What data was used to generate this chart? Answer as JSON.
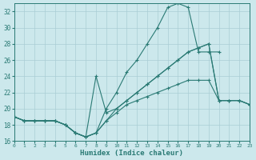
{
  "xlabel": "Humidex (Indice chaleur)",
  "bg_color": "#cce8ec",
  "grid_color": "#aacdd4",
  "line_color": "#2a7a74",
  "xlim": [
    0,
    23
  ],
  "ylim": [
    16,
    33
  ],
  "xticks": [
    0,
    1,
    2,
    3,
    4,
    5,
    6,
    7,
    8,
    9,
    10,
    11,
    12,
    13,
    14,
    15,
    16,
    17,
    18,
    19,
    20,
    21,
    22,
    23
  ],
  "yticks": [
    16,
    18,
    20,
    22,
    24,
    26,
    28,
    30,
    32
  ],
  "lines": [
    {
      "x": [
        0,
        1,
        2,
        3,
        4,
        5,
        6,
        7,
        8,
        9,
        10,
        11,
        12,
        13,
        14,
        15,
        16,
        17,
        18,
        19,
        20
      ],
      "y": [
        19,
        18.5,
        18.5,
        18.5,
        18.5,
        18,
        17,
        16.5,
        17,
        20,
        22,
        24.5,
        26,
        28,
        30,
        32.5,
        33,
        32.5,
        27,
        27,
        27
      ]
    },
    {
      "x": [
        0,
        1,
        2,
        3,
        4,
        5,
        6,
        7,
        8,
        9,
        10,
        11,
        12,
        13,
        14,
        15,
        16,
        17,
        18,
        19,
        20,
        21,
        22,
        23
      ],
      "y": [
        19,
        18.5,
        18.5,
        18.5,
        18.5,
        18,
        17,
        16.5,
        17,
        18.5,
        19.5,
        20.5,
        21,
        21.5,
        22,
        22.5,
        23,
        23.5,
        23.5,
        23.5,
        21,
        21,
        21,
        20.5
      ]
    },
    {
      "x": [
        0,
        1,
        2,
        3,
        4,
        5,
        6,
        7,
        8,
        9,
        10,
        11,
        12,
        13,
        14,
        15,
        16,
        17,
        18,
        19,
        20,
        21,
        22,
        23
      ],
      "y": [
        19,
        18.5,
        18.5,
        18.5,
        18.5,
        18,
        17,
        16.5,
        17,
        18.5,
        20,
        21,
        22,
        23,
        24,
        25,
        26,
        27,
        27.5,
        28,
        21,
        21,
        21,
        20.5
      ]
    },
    {
      "x": [
        0,
        1,
        2,
        3,
        4,
        5,
        6,
        7,
        8,
        9,
        10,
        11,
        12,
        13,
        14,
        15,
        16,
        17,
        18,
        19,
        20,
        21,
        22,
        23
      ],
      "y": [
        19,
        18.5,
        18.5,
        18.5,
        18.5,
        18,
        17,
        16.5,
        24,
        19.5,
        20,
        21,
        22,
        23,
        24,
        25,
        26,
        27,
        27.5,
        28,
        21,
        21,
        21,
        20.5
      ]
    }
  ]
}
